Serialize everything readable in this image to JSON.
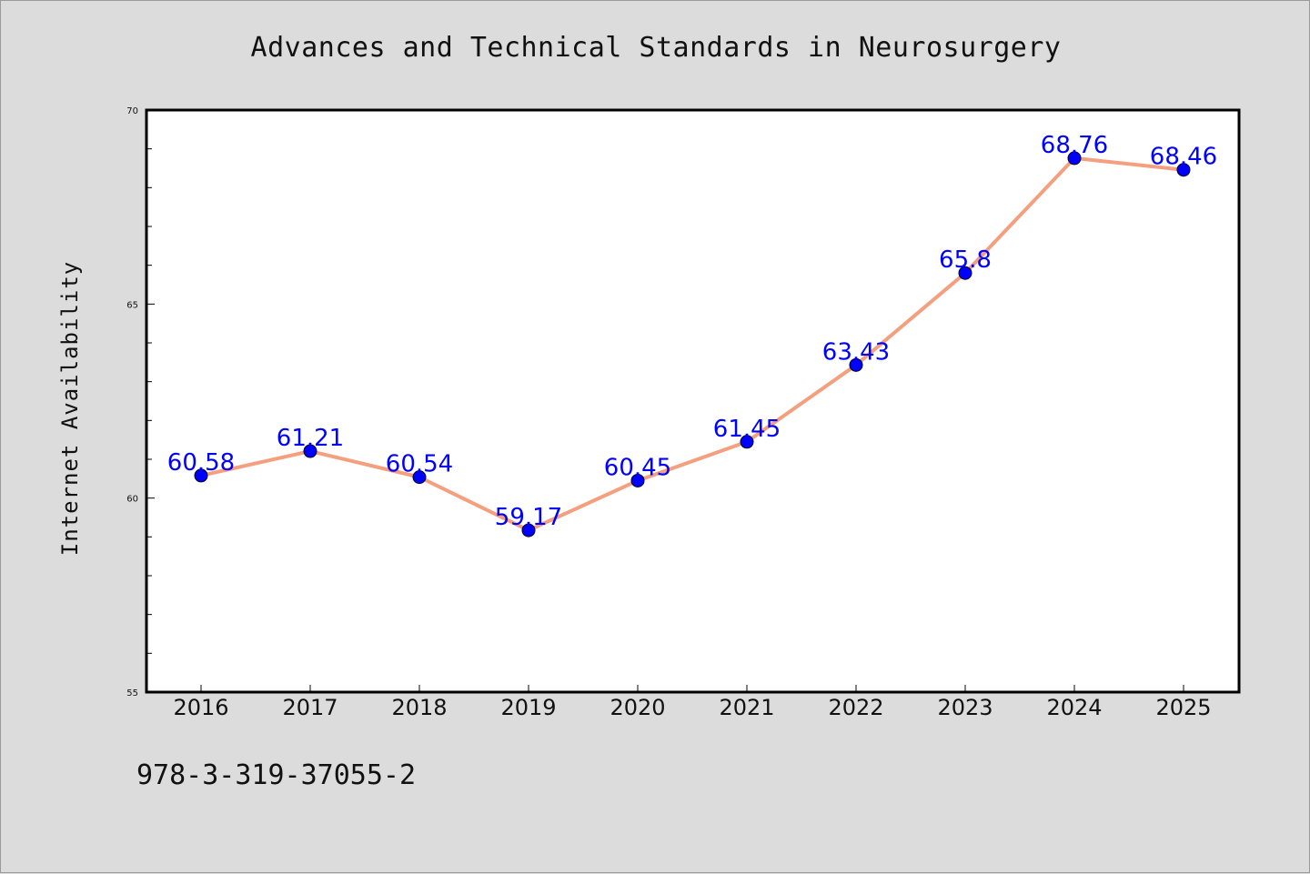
{
  "figure": {
    "background": "#dcdcdc",
    "footer_text": "978-3-319-37055-2"
  },
  "chart_data": {
    "type": "line",
    "title": "Advances and Technical Standards in Neurosurgery",
    "xlabel": "",
    "ylabel": "Internet Availability",
    "categories": [
      "2016",
      "2017",
      "2018",
      "2019",
      "2020",
      "2021",
      "2022",
      "2023",
      "2024",
      "2025"
    ],
    "series": [
      {
        "values": [
          60.58,
          61.21,
          60.54,
          59.17,
          60.45,
          61.45,
          63.43,
          65.8,
          68.76,
          68.46
        ],
        "labels": [
          "60.58",
          "61.21",
          "60.54",
          "59.17",
          "60.45",
          "61.45",
          "63.43",
          "65.8",
          "68.76",
          "68.46"
        ],
        "line_color": "#f4a07f",
        "marker_color": "#0000ff"
      }
    ],
    "ylim": [
      55,
      70
    ],
    "yticks": [
      55,
      60,
      65,
      70
    ],
    "grid": false,
    "legend": "none",
    "colors": {
      "plot_background": "#ffffff",
      "frame": "#000000",
      "data_label": "#0000ff"
    }
  }
}
